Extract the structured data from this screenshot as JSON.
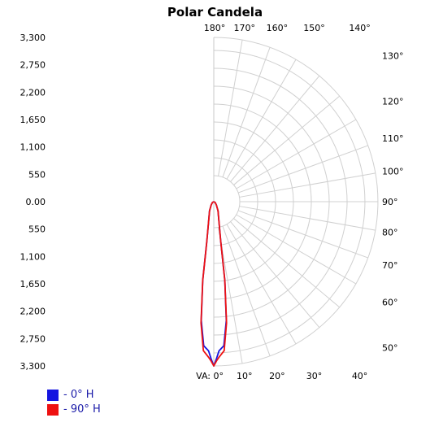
{
  "chart_data": {
    "type": "polar",
    "title": "Polar Candela",
    "radial_max": 3300,
    "y_tick_labels": [
      "3,300",
      "2,750",
      "2,200",
      "1,650",
      "1,100",
      "550",
      "0.00",
      "550",
      "1,100",
      "1,650",
      "2,200",
      "2,750",
      "3,300"
    ],
    "top_angle_labels": [
      "180°",
      "170°",
      "160°",
      "150°",
      "140°"
    ],
    "right_angle_labels": [
      "130°",
      "120°",
      "110°",
      "100°",
      "90°",
      "80°",
      "70°",
      "60°",
      "50°"
    ],
    "bottom_angle_labels": [
      "VA: 0°",
      "10°",
      "20°",
      "30°",
      "40°"
    ],
    "angle_labels": [
      {
        "text": "180°",
        "angle": 180
      },
      {
        "text": "170°",
        "angle": 170
      },
      {
        "text": "160°",
        "angle": 160
      },
      {
        "text": "150°",
        "angle": 150
      },
      {
        "text": "140°",
        "angle": 140
      },
      {
        "text": "130°",
        "angle": 130
      },
      {
        "text": "120°",
        "angle": 120
      },
      {
        "text": "110°",
        "angle": 110
      },
      {
        "text": "100°",
        "angle": 100
      },
      {
        "text": "90°",
        "angle": 90
      },
      {
        "text": "80°",
        "angle": 80
      },
      {
        "text": "70°",
        "angle": 70
      },
      {
        "text": "60°",
        "angle": 60
      },
      {
        "text": "50°",
        "angle": 50
      },
      {
        "text": "VA: 0°",
        "angle": 0
      },
      {
        "text": "10°",
        "angle": 10
      },
      {
        "text": "20°",
        "angle": 20
      },
      {
        "text": "30°",
        "angle": 30
      },
      {
        "text": "40°",
        "angle": 40
      }
    ],
    "grid": true,
    "series": [
      {
        "name": "- 0° H",
        "color": "#1515e0",
        "points": [
          [
            0,
            3300
          ],
          [
            1,
            3150
          ],
          [
            2,
            3000
          ],
          [
            4,
            2900
          ],
          [
            6,
            2400
          ],
          [
            8,
            1600
          ],
          [
            10,
            800
          ],
          [
            15,
            400
          ],
          [
            25,
            200
          ],
          [
            40,
            80
          ],
          [
            60,
            30
          ],
          [
            90,
            0
          ]
        ]
      },
      {
        "name": "- 90° H",
        "color": "#ee1111",
        "points": [
          [
            0,
            3300
          ],
          [
            1,
            3200
          ],
          [
            2,
            3120
          ],
          [
            4,
            3000
          ],
          [
            6,
            2450
          ],
          [
            8,
            1600
          ],
          [
            10,
            800
          ],
          [
            15,
            400
          ],
          [
            25,
            200
          ],
          [
            40,
            80
          ],
          [
            60,
            30
          ],
          [
            90,
            0
          ]
        ]
      }
    ]
  }
}
